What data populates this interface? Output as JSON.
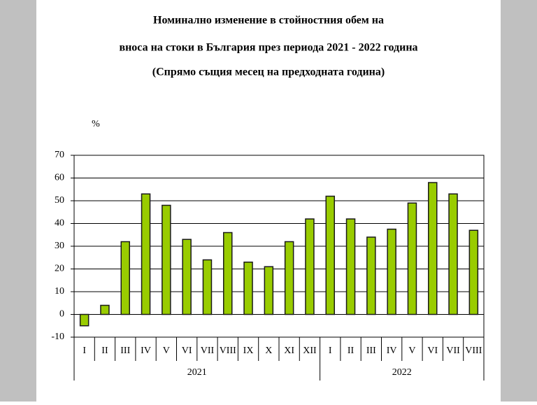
{
  "chart_data": {
    "type": "bar",
    "title": [
      "Номинално изменение в стойностния обем на",
      "вноса на стоки в България през периода 2021 - 2022 година",
      "(Спрямо същия месец на предходната година)"
    ],
    "ylabel": "%",
    "groups": [
      {
        "name": "2021",
        "categories": [
          "I",
          "II",
          "III",
          "IV",
          "V",
          "VI",
          "VII",
          "VIII",
          "IX",
          "X",
          "XI",
          "XII"
        ],
        "values": [
          -5,
          4,
          32,
          53,
          48,
          33,
          24,
          36,
          23,
          21,
          32,
          42
        ]
      },
      {
        "name": "2022",
        "categories": [
          "I",
          "II",
          "III",
          "IV",
          "V",
          "VI",
          "VII",
          "VIII"
        ],
        "values": [
          52,
          42,
          34,
          37.5,
          49,
          58,
          53,
          37
        ]
      }
    ],
    "color": "#99cc00",
    "ylim": [
      -10,
      70
    ],
    "yticks": [
      -10,
      0,
      10,
      20,
      30,
      40,
      50,
      60,
      70
    ],
    "grid": true
  }
}
